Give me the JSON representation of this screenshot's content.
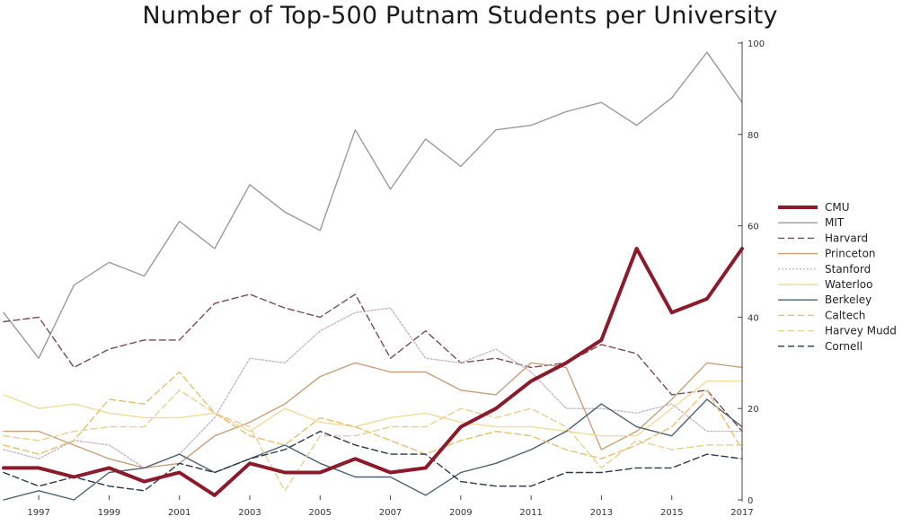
{
  "chart_data": {
    "type": "line",
    "title": "Number of Top-500 Putnam Students per University",
    "xlabel": "",
    "ylabel": "",
    "xlim": [
      1996,
      2017
    ],
    "ylim": [
      0,
      100
    ],
    "x": [
      1996,
      1997,
      1998,
      1999,
      2000,
      2001,
      2002,
      2003,
      2004,
      2005,
      2006,
      2007,
      2008,
      2009,
      2010,
      2011,
      2012,
      2013,
      2014,
      2015,
      2016,
      2017
    ],
    "x_tick_labels": [
      "1997",
      "1999",
      "2001",
      "2003",
      "2005",
      "2007",
      "2009",
      "2011",
      "2013",
      "2015",
      "2017"
    ],
    "y_tick_labels": [
      "0",
      "20",
      "40",
      "60",
      "80",
      "100"
    ],
    "y_axis_side": "right",
    "grid": false,
    "legend_position": "right",
    "series": [
      {
        "name": "CMU",
        "color": "#8b1a2b",
        "dash": "solid",
        "width": 4,
        "values": [
          7,
          7,
          5,
          7,
          4,
          6,
          1,
          8,
          6,
          6,
          9,
          6,
          7,
          16,
          20,
          26,
          30,
          35,
          55,
          41,
          44,
          55
        ]
      },
      {
        "name": "MIT",
        "color": "#9a9a9a",
        "dash": "solid",
        "width": 1.4,
        "values": [
          41,
          31,
          47,
          52,
          49,
          61,
          55,
          69,
          63,
          59,
          81,
          68,
          79,
          73,
          81,
          82,
          85,
          87,
          82,
          88,
          98,
          87
        ]
      },
      {
        "name": "Harvard",
        "color": "#7a4a58",
        "dash": "dashed",
        "width": 1.4,
        "values": [
          39,
          40,
          29,
          33,
          35,
          35,
          43,
          45,
          42,
          40,
          45,
          31,
          37,
          30,
          31,
          29,
          30,
          34,
          32,
          23,
          24,
          15
        ]
      },
      {
        "name": "Princeton",
        "color": "#c9a07a",
        "dash": "solid",
        "width": 1.4,
        "values": [
          15,
          15,
          12,
          9,
          7,
          8,
          14,
          17,
          21,
          27,
          30,
          28,
          28,
          24,
          23,
          30,
          29,
          11,
          15,
          22,
          30,
          29
        ]
      },
      {
        "name": "Stanford",
        "color": "#c8b8c8",
        "dash": "dotted",
        "width": 1.4,
        "values": [
          11,
          9,
          13,
          12,
          7,
          10,
          18,
          31,
          30,
          37,
          41,
          42,
          31,
          30,
          33,
          28,
          20,
          20,
          19,
          21,
          15,
          15
        ]
      },
      {
        "name": "Waterloo",
        "color": "#f0dc9a",
        "dash": "solid",
        "width": 1.4,
        "values": [
          23,
          20,
          21,
          19,
          18,
          18,
          19,
          15,
          20,
          17,
          16,
          18,
          19,
          17,
          16,
          16,
          15,
          14,
          14,
          20,
          26,
          26
        ]
      },
      {
        "name": "Berkeley",
        "color": "#4a6272",
        "dash": "solid",
        "width": 1.4,
        "values": [
          0,
          2,
          0,
          6,
          7,
          10,
          6,
          9,
          12,
          8,
          5,
          5,
          1,
          6,
          8,
          11,
          15,
          21,
          16,
          14,
          22,
          16
        ]
      },
      {
        "name": "Caltech",
        "color": "#e6c070",
        "dash": "dashed",
        "width": 1.4,
        "values": [
          12,
          10,
          13,
          22,
          21,
          28,
          19,
          14,
          12,
          18,
          16,
          13,
          10,
          13,
          15,
          14,
          11,
          9,
          12,
          16,
          24,
          11
        ]
      },
      {
        "name": "Harvey Mudd",
        "color": "#e8d092",
        "dash": "dashed",
        "width": 1.4,
        "values": [
          14,
          13,
          15,
          16,
          16,
          24,
          19,
          16,
          2,
          14,
          14,
          16,
          16,
          20,
          18,
          20,
          16,
          7,
          13,
          11,
          12,
          12
        ]
      },
      {
        "name": "Cornell",
        "color": "#2a3a4a",
        "dash": "dashed",
        "width": 1.4,
        "values": [
          6,
          3,
          5,
          3,
          2,
          8,
          6,
          9,
          11,
          15,
          12,
          10,
          10,
          4,
          3,
          3,
          6,
          6,
          7,
          7,
          10,
          9
        ]
      }
    ]
  }
}
